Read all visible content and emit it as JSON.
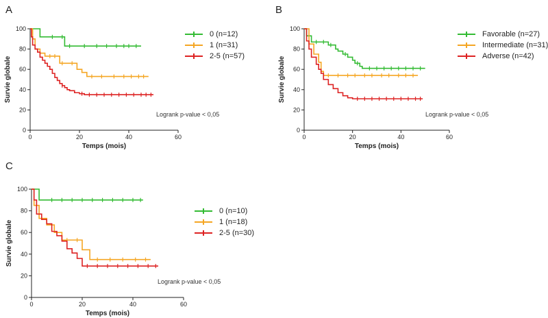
{
  "chart_data": [
    {
      "panel": "A",
      "type": "line",
      "xlabel": "Temps (mois)",
      "ylabel": "Survie globale",
      "xlim": [
        0,
        60
      ],
      "ylim": [
        0,
        100
      ],
      "xticks": [
        0,
        20,
        40,
        60
      ],
      "yticks": [
        0,
        20,
        40,
        60,
        80,
        100
      ],
      "legend_position": "top-right",
      "annotation": "Logrank p-value < 0,05",
      "series": [
        {
          "name": "0 (n=12)",
          "color": "#33bb33",
          "x": [
            0,
            4,
            14,
            45
          ],
          "y": [
            100,
            92,
            83,
            83
          ],
          "censor_x": [
            9,
            13,
            16,
            22,
            27,
            31,
            35,
            38,
            40,
            43
          ]
        },
        {
          "name": "1 (n=31)",
          "color": "#f5a623",
          "x": [
            0,
            1,
            2,
            4,
            6,
            12,
            19,
            21,
            23,
            48
          ],
          "y": [
            100,
            90,
            80,
            76,
            73,
            66,
            60,
            57,
            53,
            53
          ],
          "censor_x": [
            8,
            10,
            13,
            17,
            25,
            29,
            34,
            38,
            41,
            44,
            46
          ]
        },
        {
          "name": "2-5 (n=57)",
          "color": "#dd2222",
          "x": [
            0,
            0.5,
            1,
            2,
            3,
            4,
            5,
            6,
            7,
            8,
            9,
            10,
            11,
            12,
            13,
            14,
            15,
            16,
            18,
            20,
            22,
            50
          ],
          "y": [
            100,
            92,
            84,
            80,
            77,
            72,
            69,
            66,
            63,
            60,
            56,
            52,
            49,
            46,
            44,
            42,
            40,
            39,
            37,
            36,
            35,
            35
          ],
          "censor_x": [
            13,
            21,
            24,
            27,
            30,
            33,
            36,
            39,
            42,
            45,
            47,
            49
          ]
        }
      ]
    },
    {
      "panel": "B",
      "type": "line",
      "xlabel": "Temps (mois)",
      "ylabel": "Survie globale",
      "xlim": [
        0,
        60
      ],
      "ylim": [
        0,
        100
      ],
      "xticks": [
        0,
        20,
        40,
        60
      ],
      "yticks": [
        0,
        20,
        40,
        60,
        80,
        100
      ],
      "legend_position": "top-right",
      "annotation": "Logrank p-value < 0,05",
      "series": [
        {
          "name": "Favorable (n=27)",
          "color": "#33bb33",
          "x": [
            0,
            1,
            3,
            10,
            13,
            14,
            16,
            18,
            20,
            21,
            23,
            24,
            50
          ],
          "y": [
            100,
            93,
            87,
            84,
            80,
            78,
            75,
            72,
            69,
            66,
            63,
            61,
            61
          ],
          "censor_x": [
            5,
            8,
            11,
            17,
            22,
            27,
            30,
            33,
            36,
            39,
            42,
            45,
            48
          ]
        },
        {
          "name": "Intermediate (n=31)",
          "color": "#f5a623",
          "x": [
            0,
            2,
            4,
            6,
            7,
            8,
            47
          ],
          "y": [
            100,
            85,
            75,
            67,
            58,
            54,
            54
          ],
          "censor_x": [
            10,
            14,
            18,
            21,
            25,
            28,
            32,
            35,
            39,
            42,
            45
          ]
        },
        {
          "name": "Adverse (n=42)",
          "color": "#dd2222",
          "x": [
            0,
            1,
            2,
            3,
            5,
            6,
            7,
            8,
            10,
            12,
            14,
            16,
            18,
            20,
            49
          ],
          "y": [
            100,
            88,
            80,
            72,
            65,
            60,
            56,
            50,
            45,
            41,
            37,
            34,
            32,
            31,
            31
          ],
          "censor_x": [
            22,
            25,
            28,
            31,
            34,
            37,
            40,
            43,
            46,
            48
          ]
        }
      ]
    },
    {
      "panel": "C",
      "type": "line",
      "xlabel": "Temps (mois)",
      "ylabel": "Survie globale",
      "xlim": [
        0,
        60
      ],
      "ylim": [
        0,
        100
      ],
      "xticks": [
        0,
        20,
        40,
        60
      ],
      "yticks": [
        0,
        20,
        40,
        60,
        80,
        100
      ],
      "legend_position": "right",
      "annotation": "Logrank p-value < 0,05",
      "series": [
        {
          "name": "0 (n=10)",
          "color": "#33bb33",
          "x": [
            0,
            3,
            44
          ],
          "y": [
            100,
            90,
            90
          ],
          "censor_x": [
            8,
            12,
            16,
            20,
            24,
            28,
            32,
            36,
            40,
            43
          ]
        },
        {
          "name": "1 (n=18)",
          "color": "#f5a623",
          "x": [
            0,
            1,
            3,
            6,
            9,
            12,
            16,
            20,
            23,
            47
          ],
          "y": [
            100,
            85,
            73,
            67,
            60,
            53,
            53,
            44,
            35,
            35
          ],
          "censor_x": [
            14,
            18,
            26,
            31,
            36,
            41,
            45
          ]
        },
        {
          "name": "2-5 (n=30)",
          "color": "#dd2222",
          "x": [
            0,
            1,
            2,
            4,
            6,
            8,
            10,
            12,
            14,
            16,
            18,
            20,
            50
          ],
          "y": [
            100,
            90,
            77,
            72,
            68,
            61,
            57,
            52,
            45,
            41,
            36,
            29,
            29
          ],
          "censor_x": [
            22,
            26,
            30,
            34,
            38,
            42,
            46,
            49
          ]
        }
      ]
    }
  ]
}
